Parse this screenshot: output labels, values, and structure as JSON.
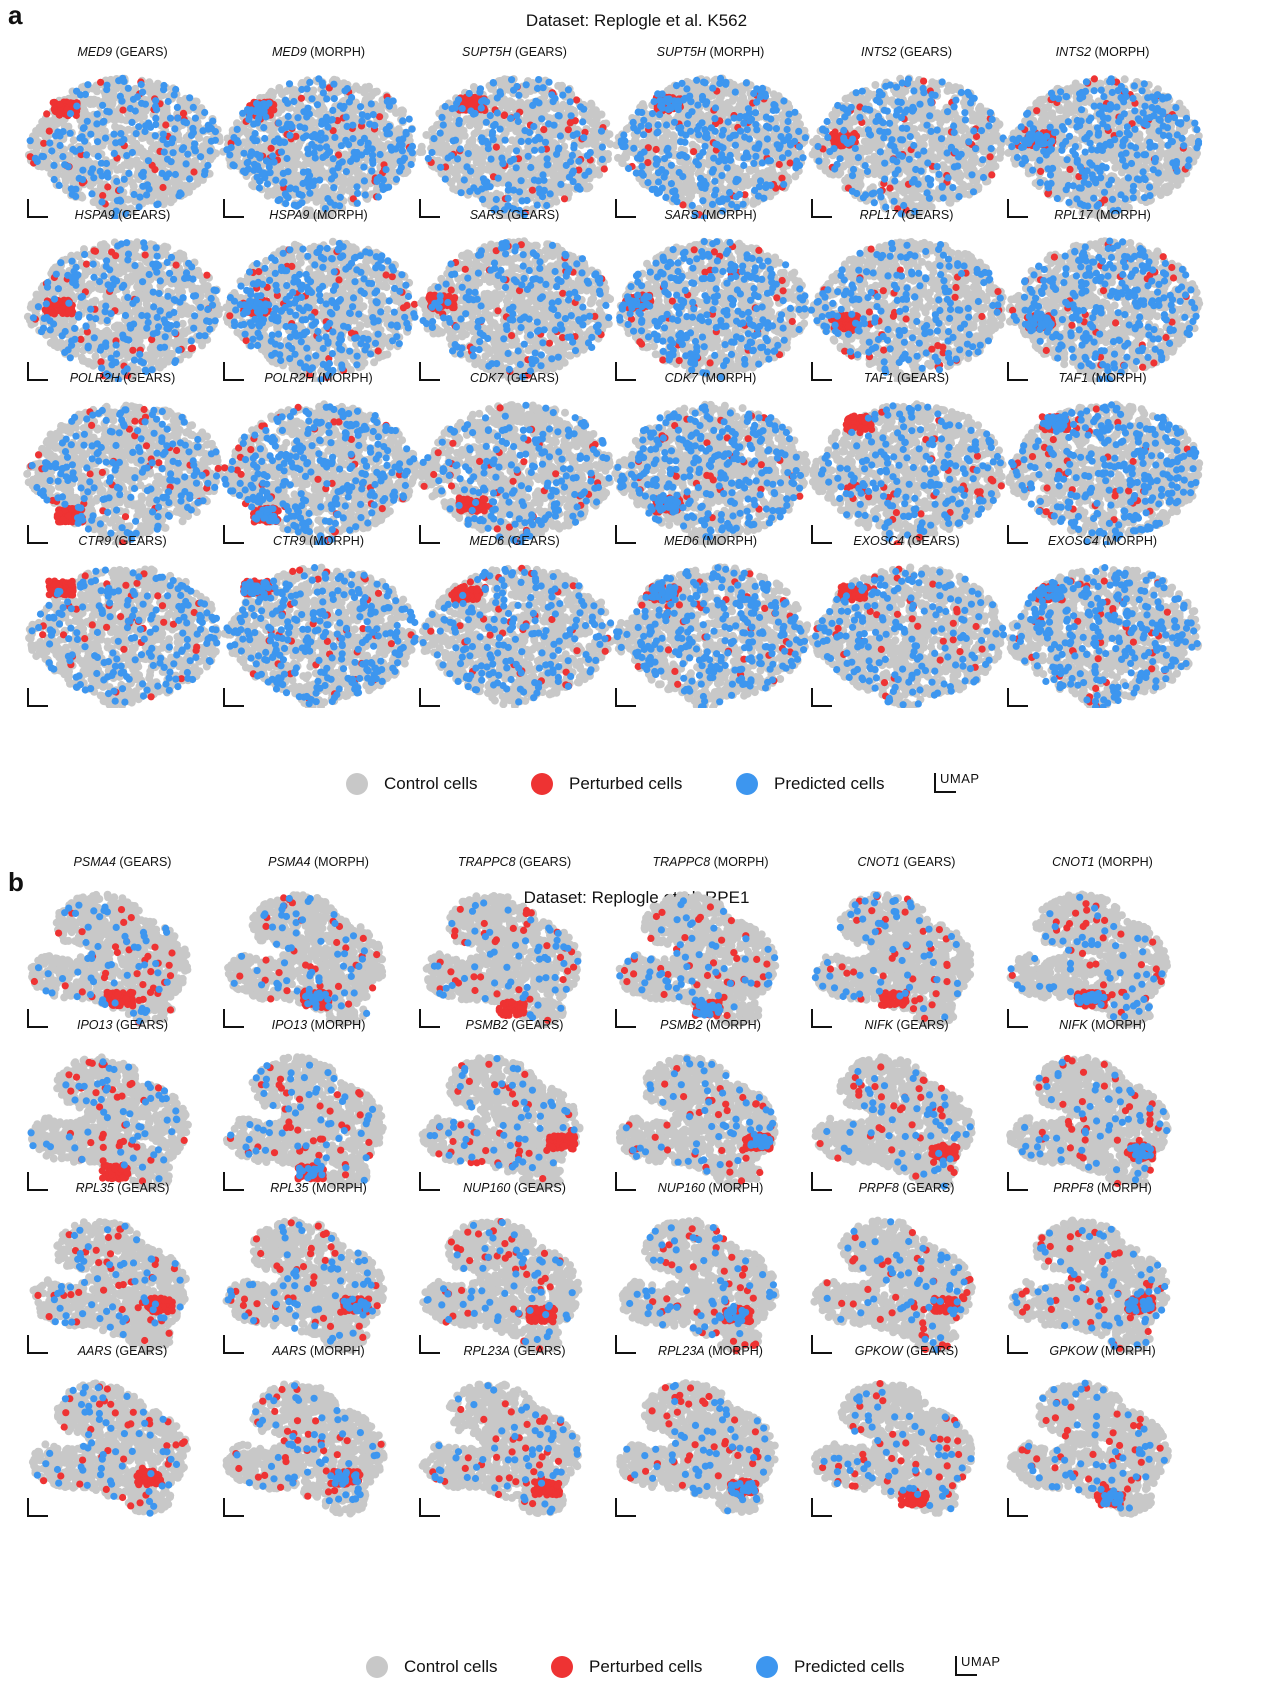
{
  "colors": {
    "control": "#c8c8c8",
    "perturbed": "#ee3333",
    "predicted": "#3d96ef"
  },
  "legend": {
    "control": "Control cells",
    "perturbed": "Perturbed cells",
    "predicted": "Predicted cells",
    "umap": "UMAP"
  },
  "chart_data": [
    {
      "type": "scatter",
      "panel": "a",
      "title": "Dataset: Replogle et al. K562",
      "xlabel": "",
      "ylabel": "",
      "axes": "UMAP scale bar only",
      "plots": [
        {
          "gene": "MED9",
          "model": "(GEARS)"
        },
        {
          "gene": "MED9",
          "model": "(MORPH)"
        },
        {
          "gene": "SUPT5H",
          "model": "(GEARS)"
        },
        {
          "gene": "SUPT5H",
          "model": "(MORPH)"
        },
        {
          "gene": "INTS2",
          "model": "(GEARS)"
        },
        {
          "gene": "INTS2",
          "model": "(MORPH)"
        },
        {
          "gene": "HSPA9",
          "model": "(GEARS)"
        },
        {
          "gene": "HSPA9",
          "model": "(MORPH)"
        },
        {
          "gene": "SARS",
          "model": "(GEARS)"
        },
        {
          "gene": "SARS",
          "model": "(MORPH)"
        },
        {
          "gene": "RPL17",
          "model": "(GEARS)"
        },
        {
          "gene": "RPL17",
          "model": "(MORPH)"
        },
        {
          "gene": "POLR2H",
          "model": "(GEARS)"
        },
        {
          "gene": "POLR2H",
          "model": "(MORPH)"
        },
        {
          "gene": "CDK7",
          "model": "(GEARS)"
        },
        {
          "gene": "CDK7",
          "model": "(MORPH)"
        },
        {
          "gene": "TAF1",
          "model": "(GEARS)"
        },
        {
          "gene": "TAF1",
          "model": "(MORPH)"
        },
        {
          "gene": "CTR9",
          "model": "(GEARS)"
        },
        {
          "gene": "CTR9",
          "model": "(MORPH)"
        },
        {
          "gene": "MED6",
          "model": "(GEARS)"
        },
        {
          "gene": "MED6",
          "model": "(MORPH)"
        },
        {
          "gene": "EXOSC4",
          "model": "(GEARS)"
        },
        {
          "gene": "EXOSC4",
          "model": "(MORPH)"
        }
      ]
    },
    {
      "type": "scatter",
      "panel": "b",
      "title": "Dataset: Replogle et al. RPE1",
      "xlabel": "",
      "ylabel": "",
      "axes": "UMAP scale bar only",
      "plots": [
        {
          "gene": "PSMA4",
          "model": "(GEARS)"
        },
        {
          "gene": "PSMA4",
          "model": "(MORPH)"
        },
        {
          "gene": "TRAPPC8",
          "model": "(GEARS)"
        },
        {
          "gene": "TRAPPC8",
          "model": "(MORPH)"
        },
        {
          "gene": "CNOT1",
          "model": "(GEARS)"
        },
        {
          "gene": "CNOT1",
          "model": "(MORPH)"
        },
        {
          "gene": "IPO13",
          "model": "(GEARS)"
        },
        {
          "gene": "IPO13",
          "model": "(MORPH)"
        },
        {
          "gene": "PSMB2",
          "model": "(GEARS)"
        },
        {
          "gene": "PSMB2",
          "model": "(MORPH)"
        },
        {
          "gene": "NIFK",
          "model": "(GEARS)"
        },
        {
          "gene": "NIFK",
          "model": "(MORPH)"
        },
        {
          "gene": "RPL35",
          "model": "(GEARS)"
        },
        {
          "gene": "RPL35",
          "model": "(MORPH)"
        },
        {
          "gene": "NUP160",
          "model": "(GEARS)"
        },
        {
          "gene": "NUP160",
          "model": "(MORPH)"
        },
        {
          "gene": "PRPF8",
          "model": "(GEARS)"
        },
        {
          "gene": "PRPF8",
          "model": "(MORPH)"
        },
        {
          "gene": "AARS",
          "model": "(GEARS)"
        },
        {
          "gene": "AARS",
          "model": "(MORPH)"
        },
        {
          "gene": "RPL23A",
          "model": "(GEARS)"
        },
        {
          "gene": "RPL23A",
          "model": "(MORPH)"
        },
        {
          "gene": "GPKOW",
          "model": "(GEARS)"
        },
        {
          "gene": "GPKOW",
          "model": "(MORPH)"
        }
      ]
    }
  ]
}
